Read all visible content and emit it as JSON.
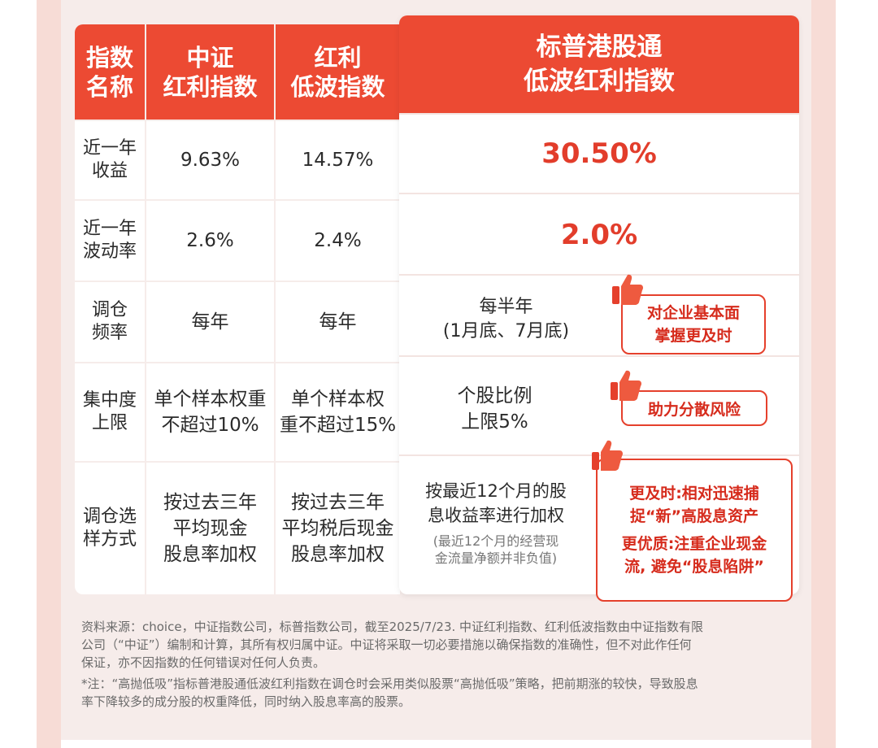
{
  "table": {
    "headers": {
      "name": "指数\n名称",
      "csi_dividend": "中证\n红利指数",
      "low_vol_dividend": "红利\n低波指数",
      "sp_hk": "标普港股通\n低波红利指数"
    },
    "rows": [
      {
        "label": "近一年\n收益",
        "csi_dividend": "9.63%",
        "low_vol_dividend": "14.57%",
        "sp_hk": "30.50%"
      },
      {
        "label": "近一年\n波动率",
        "csi_dividend": "2.6%",
        "low_vol_dividend": "2.4%",
        "sp_hk": "2.0%"
      },
      {
        "label": "调仓\n频率",
        "csi_dividend": "每年",
        "low_vol_dividend": "每年",
        "sp_hk": "每半年\n(1月底、7月底)",
        "callout": "对企业基本面\n掌握更及时"
      },
      {
        "label": "集中度\n上限",
        "csi_dividend": "单个样本权重\n不超过10%",
        "low_vol_dividend": "单个样本权\n重不超过15%",
        "sp_hk": "个股比例\n上限5%",
        "callout": "助力分散风险"
      },
      {
        "label": "调仓选\n样方式",
        "csi_dividend": "按过去三年\n平均现金\n股息率加权",
        "low_vol_dividend": "按过去三年\n平均税后现金\n股息率加权",
        "sp_hk": "按最近12个月的股\n息收益率进行加权",
        "sp_hk_note": "(最近12个月的经营现\n金流量净额并非负值)",
        "callout_1": "更及时:相对迅速捕\n捉“新”高股息资产",
        "callout_2": "更优质:注重企业现金\n流, 避免“股息陷阱”"
      }
    ]
  },
  "icons": {
    "thumbs_up": "thumbs-up-icon"
  },
  "colors": {
    "accent_red": "#ec4a33",
    "highlight_red": "#e23d2b"
  },
  "footnote": {
    "source": "资料来源：choice，中证指数公司，标普指数公司，截至2025/7/23. 中证红利指数、红利低波指数由中证指数有限\n公司（“中证”）编制和计算，其所有权归属中证。中证将采取一切必要措施以确保指数的准确性，但不对此作任何\n保证，亦不因指数的任何错误对任何人负责。",
    "note": "*注：“高抛低吸”指标普港股通低波红利指数在调仓时会采用类似股票“高抛低吸”策略，把前期涨的较快，导致股息\n率下降较多的成分股的权重降低，同时纳入股息率高的股票。"
  }
}
